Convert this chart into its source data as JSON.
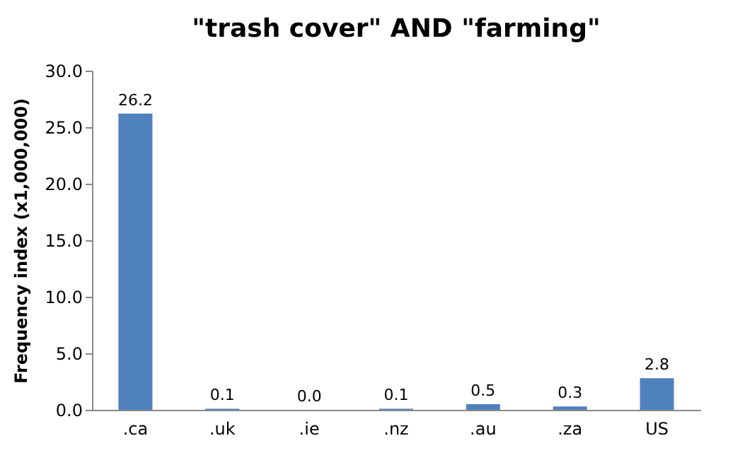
{
  "chart_data": {
    "type": "bar",
    "title": "\"trash cover\" AND \"farming\"",
    "ylabel": "Frequency index (x1,000,000)",
    "categories": [
      ".ca",
      ".uk",
      ".ie",
      ".nz",
      ".au",
      ".za",
      "US"
    ],
    "values": [
      26.2,
      0.1,
      0.0,
      0.1,
      0.5,
      0.3,
      2.8
    ],
    "color": "#4f81bd",
    "ylim": [
      0,
      30
    ],
    "yticks": [
      {
        "value": 0,
        "label": "0.0"
      },
      {
        "value": 5,
        "label": "5.0"
      },
      {
        "value": 10,
        "label": "10.0"
      },
      {
        "value": 15,
        "label": "15.0"
      },
      {
        "value": 20,
        "label": "20.0"
      },
      {
        "value": 25,
        "label": "25.0"
      },
      {
        "value": 30,
        "label": "30.0"
      }
    ],
    "value_labels": [
      "26.2",
      "0.1",
      "0.0",
      "0.1",
      "0.5",
      "0.3",
      "2.8"
    ],
    "grid": false
  }
}
